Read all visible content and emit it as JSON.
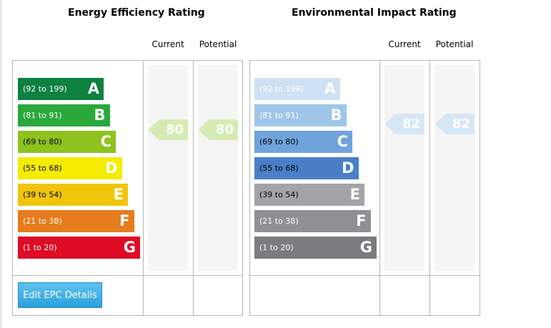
{
  "energy": {
    "title": "Energy Efficiency Rating",
    "current_label": "Current",
    "potential_label": "Potential",
    "bands": [
      {
        "range": "(92 to 199)",
        "letter": "A",
        "color": "#0e8040",
        "text_color": "#ffffff"
      },
      {
        "range": "(81 to 91)",
        "letter": "B",
        "color": "#2aa83c",
        "text_color": "#ffffff"
      },
      {
        "range": "(69 to 80)",
        "letter": "C",
        "color": "#8dc21f",
        "text_color": "#000000"
      },
      {
        "range": "(55 to 68)",
        "letter": "D",
        "color": "#f5ec00",
        "text_color": "#000000"
      },
      {
        "range": "(39 to 54)",
        "letter": "E",
        "color": "#f1c50c",
        "text_color": "#000000"
      },
      {
        "range": "(21 to 38)",
        "letter": "F",
        "color": "#e57c1d",
        "text_color": "#ffffff"
      },
      {
        "range": "(1 to 20)",
        "letter": "G",
        "color": "#df0a24",
        "text_color": "#ffffff"
      }
    ],
    "current": {
      "value": "80",
      "color": "#d6ebb3"
    },
    "potential": {
      "value": "80",
      "color": "#d6ebb3"
    }
  },
  "environmental": {
    "title": "Environmental Impact Rating",
    "current_label": "Current",
    "potential_label": "Potential",
    "bands": [
      {
        "range": "(92 to 199)",
        "letter": "A",
        "color": "#cde2f4",
        "text_color": "#ffffff"
      },
      {
        "range": "(81 to 91)",
        "letter": "B",
        "color": "#9fc6e9",
        "text_color": "#ffffff"
      },
      {
        "range": "(69 to 80)",
        "letter": "C",
        "color": "#6fa3dc",
        "text_color": "#000000"
      },
      {
        "range": "(55 to 68)",
        "letter": "D",
        "color": "#4a7fc8",
        "text_color": "#000000"
      },
      {
        "range": "(39 to 54)",
        "letter": "E",
        "color": "#a3a4a8",
        "text_color": "#000000"
      },
      {
        "range": "(21 to 38)",
        "letter": "F",
        "color": "#8f9094",
        "text_color": "#ffffff"
      },
      {
        "range": "(1 to 20)",
        "letter": "G",
        "color": "#7b7c80",
        "text_color": "#ffffff"
      }
    ],
    "current": {
      "value": "82",
      "color": "#d5e6f5"
    },
    "potential": {
      "value": "82",
      "color": "#d5e6f5"
    }
  },
  "actions": {
    "edit_label": "Edit EPC Details"
  }
}
